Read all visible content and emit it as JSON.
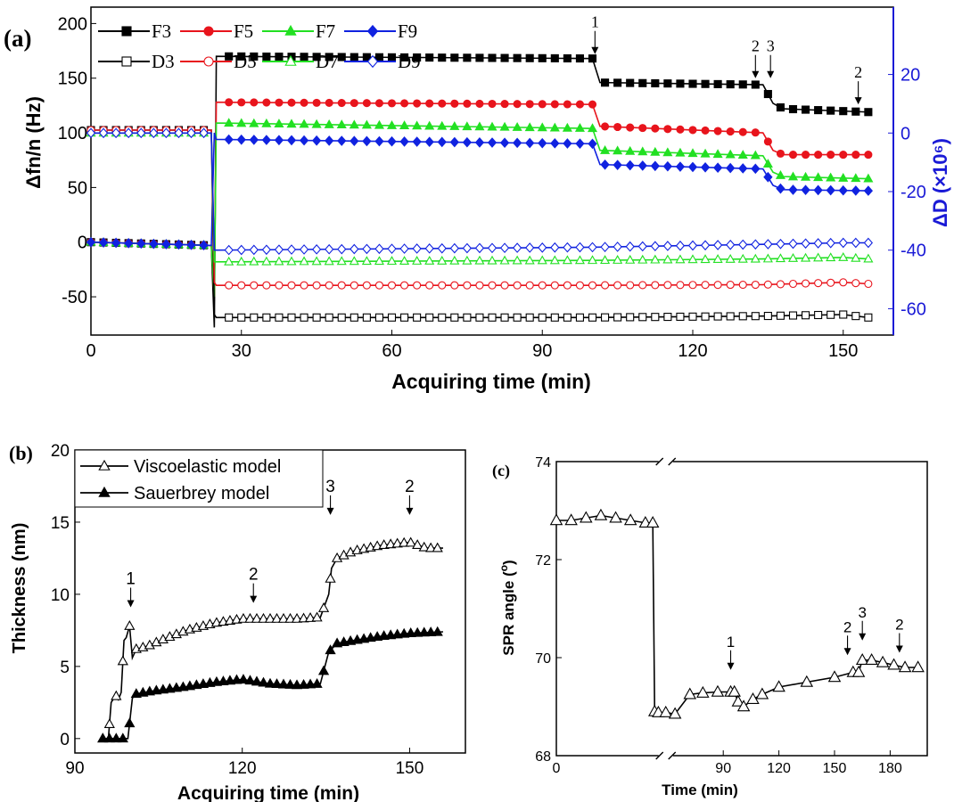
{
  "colors": {
    "F3": "#000000",
    "F5": "#e8141c",
    "F7": "#22e022",
    "F9": "#1022e0",
    "D3": "#000000",
    "D5": "#e8141c",
    "D7": "#22e022",
    "D9": "#1022e0",
    "right_axis": "#1a1ad6"
  },
  "chart_data": [
    {
      "panel": "(a)",
      "type": "line",
      "xlabel": "Acquiring time (min)",
      "ylabel": "Δfn/n (Hz)",
      "y2label": "ΔD (×10⁶)",
      "xlim": [
        0,
        160
      ],
      "ylim": [
        -85,
        215
      ],
      "y2lim": [
        -69,
        43
      ],
      "xticks": [
        0,
        30,
        60,
        90,
        120,
        150
      ],
      "yticks": [
        -50,
        0,
        50,
        100,
        150,
        200
      ],
      "y2ticks": [
        -60,
        -40,
        -20,
        0,
        20
      ],
      "legend_position": "top-left",
      "series": [
        {
          "name": "F3",
          "axis": "left",
          "marker": "square-filled",
          "x": [
            0,
            24,
            24.6,
            25,
            100,
            101.5,
            134,
            136,
            138,
            155
          ],
          "y": [
            0,
            -3,
            -78,
            170,
            168,
            146,
            144,
            127,
            122,
            119
          ]
        },
        {
          "name": "F5",
          "axis": "left",
          "marker": "circle-filled",
          "x": [
            0,
            24,
            24.6,
            25,
            100,
            101.5,
            134,
            136,
            138,
            155
          ],
          "y": [
            0,
            -3,
            -50,
            128,
            126,
            106,
            100,
            84,
            80,
            80
          ]
        },
        {
          "name": "F7",
          "axis": "left",
          "marker": "triangle-filled",
          "x": [
            0,
            24,
            24.6,
            25,
            100,
            101.5,
            134,
            136,
            138,
            155
          ],
          "y": [
            0,
            -3,
            -50,
            109,
            104,
            84,
            79,
            64,
            60,
            58
          ]
        },
        {
          "name": "F9",
          "axis": "left",
          "marker": "diamond-filled",
          "x": [
            0,
            24,
            24.6,
            25,
            100,
            101.5,
            134,
            136,
            138,
            155
          ],
          "y": [
            0,
            -3,
            100,
            94,
            90,
            71,
            67,
            52,
            48,
            47
          ]
        },
        {
          "name": "D3",
          "axis": "right",
          "marker": "square-open",
          "x": [
            0,
            24,
            24.6,
            25,
            100,
            134,
            150,
            155
          ],
          "y": [
            1,
            1,
            -62,
            -63,
            -63,
            -62.5,
            -62,
            -63
          ]
        },
        {
          "name": "D5",
          "axis": "right",
          "marker": "circle-open",
          "x": [
            0,
            24,
            24.6,
            25,
            100,
            134,
            150,
            155
          ],
          "y": [
            1,
            1,
            -51,
            -52,
            -52,
            -51.8,
            -51,
            -51.5
          ]
        },
        {
          "name": "D7",
          "axis": "right",
          "marker": "triangle-open",
          "x": [
            0,
            24,
            24.6,
            25,
            100,
            134,
            150,
            155
          ],
          "y": [
            0,
            0,
            -44,
            -44,
            -43.5,
            -43,
            -42.5,
            -43
          ]
        },
        {
          "name": "D9",
          "axis": "right",
          "marker": "diamond-open",
          "x": [
            0,
            24,
            24.6,
            25,
            100,
            134,
            150,
            155
          ],
          "y": [
            0,
            0,
            -40,
            -40,
            -39,
            -38,
            -37.5,
            -37.5
          ]
        }
      ],
      "annotations": [
        {
          "label": "1",
          "x": 100.5,
          "y": 172
        },
        {
          "label": "2",
          "x": 132.5,
          "y": 150
        },
        {
          "label": "3",
          "x": 135.5,
          "y": 150
        },
        {
          "label": "2",
          "x": 153,
          "y": 126
        }
      ]
    },
    {
      "panel": "(b)",
      "type": "line",
      "xlabel": "Acquiring time (min)",
      "ylabel": "Thickness (nm)",
      "xlim": [
        90,
        160
      ],
      "ylim": [
        -1,
        20
      ],
      "xticks": [
        90,
        120,
        150
      ],
      "yticks": [
        0,
        5,
        10,
        15,
        20
      ],
      "legend_position": "top-left",
      "series": [
        {
          "name": "Viscoelastic model",
          "marker": "triangle-open",
          "x": [
            95,
            96,
            96.5,
            97.3,
            97.8,
            98.3,
            98.8,
            99.2,
            99.8,
            100.3,
            101,
            103,
            106,
            110,
            115,
            120,
            125,
            130,
            134,
            135.5,
            136,
            137,
            140,
            145,
            150,
            153,
            156
          ],
          "y": [
            0,
            0,
            2.5,
            3,
            2.7,
            3.2,
            6.8,
            7,
            7.8,
            5.6,
            6.2,
            6.4,
            6.9,
            7.5,
            8,
            8.3,
            8.3,
            8.3,
            8.4,
            10,
            11.8,
            12.5,
            13,
            13.4,
            13.6,
            13.2,
            13.2
          ]
        },
        {
          "name": "Sauerbrey model",
          "marker": "triangle-filled",
          "x": [
            95,
            99.5,
            100.3,
            101,
            104,
            110,
            115,
            120,
            125,
            130,
            134,
            135.5,
            137,
            140,
            145,
            150,
            156
          ],
          "y": [
            0,
            0,
            2.8,
            3.1,
            3.3,
            3.6,
            3.9,
            4.1,
            3.8,
            3.7,
            3.8,
            6,
            6.6,
            6.8,
            7.1,
            7.3,
            7.4
          ]
        }
      ],
      "annotations": [
        {
          "label": "1",
          "x": 100,
          "y": 9.1
        },
        {
          "label": "2",
          "x": 122,
          "y": 9.4
        },
        {
          "label": "3",
          "x": 135.8,
          "y": 15.5
        },
        {
          "label": "2",
          "x": 150,
          "y": 15.5
        }
      ]
    },
    {
      "panel": "(c)",
      "type": "line",
      "xlabel": "Time (min)",
      "ylabel": "SPR angle (o)",
      "xlim": [
        0,
        200
      ],
      "ylim": [
        68,
        74
      ],
      "xticks": [
        0,
        90,
        120,
        150,
        180
      ],
      "yticks": [
        68,
        70,
        72,
        74
      ],
      "axis_break": true,
      "series": [
        {
          "name": "",
          "marker": "triangle-open",
          "x": [
            0,
            8,
            16,
            24,
            32,
            40,
            48,
            52,
            53,
            55,
            59,
            64,
            72,
            79,
            87,
            94,
            96,
            98,
            101,
            106,
            111,
            120,
            135,
            150,
            160,
            163,
            165,
            170,
            176,
            182,
            188,
            195
          ],
          "y": [
            72.8,
            72.8,
            72.85,
            72.9,
            72.85,
            72.8,
            72.75,
            72.75,
            68.9,
            68.88,
            68.88,
            68.85,
            69.25,
            69.28,
            69.3,
            69.3,
            69.3,
            69.1,
            69.0,
            69.15,
            69.25,
            69.4,
            69.5,
            69.6,
            69.7,
            69.7,
            69.95,
            69.95,
            69.9,
            69.85,
            69.8,
            69.8
          ]
        }
      ],
      "annotations": [
        {
          "label": "1",
          "x": 94,
          "y": 69.75
        },
        {
          "label": "2",
          "x": 157,
          "y": 70.05
        },
        {
          "label": "3",
          "x": 165,
          "y": 70.35
        },
        {
          "label": "2",
          "x": 185,
          "y": 70.1
        }
      ]
    }
  ]
}
